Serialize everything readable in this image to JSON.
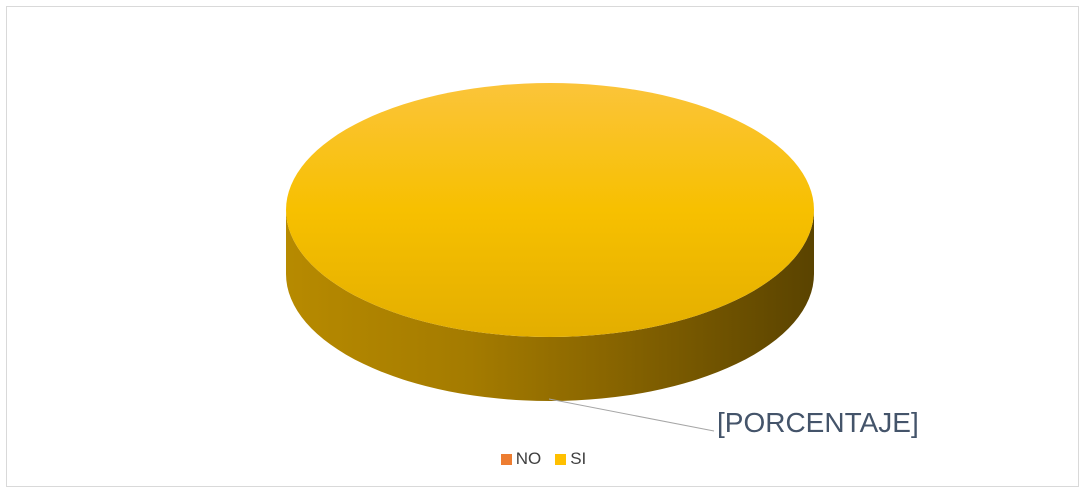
{
  "chart_data": {
    "type": "pie",
    "title": "",
    "categories": [
      "NO",
      "SI"
    ],
    "values": [
      0,
      100
    ],
    "colors": [
      "#ED7D31",
      "#FFC000"
    ],
    "data_labels": [
      "",
      "[PORCENTAJE]"
    ],
    "legend_position": "bottom",
    "style": "3d"
  }
}
